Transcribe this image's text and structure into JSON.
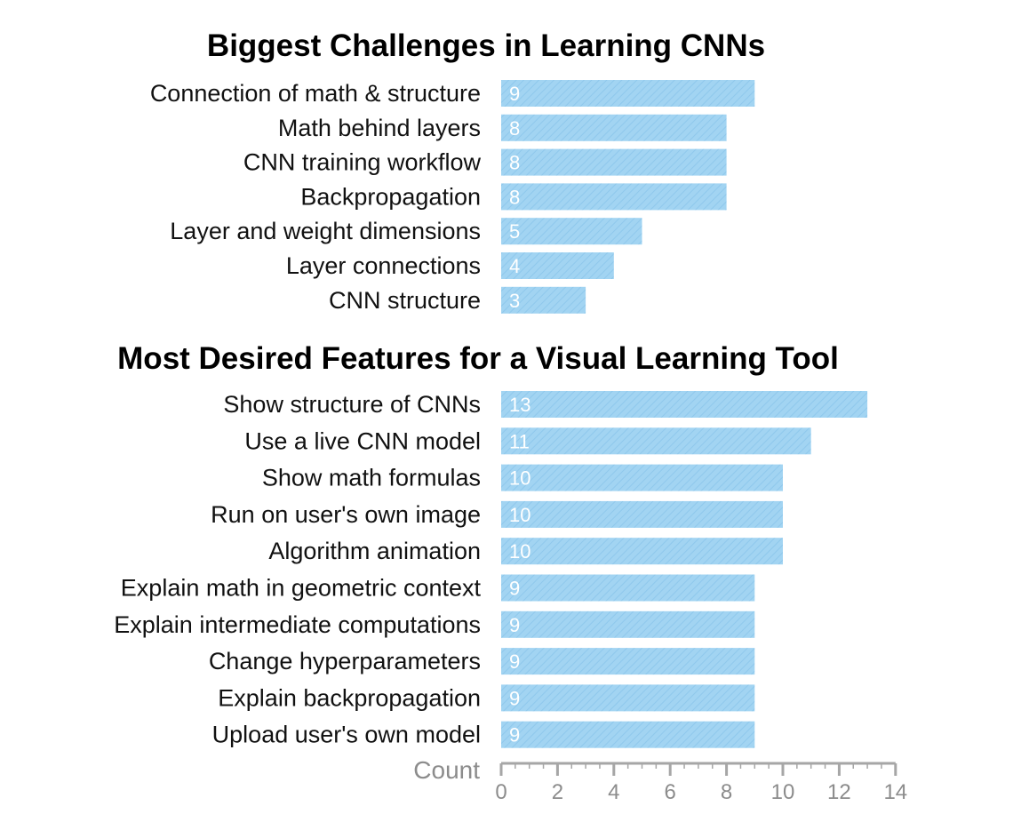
{
  "chart_data": [
    {
      "type": "bar",
      "orientation": "horizontal",
      "title": "Biggest Challenges in Learning CNNs",
      "categories": [
        "Connection of math & structure",
        "Math behind layers",
        "CNN training workflow",
        "Backpropagation",
        "Layer and weight dimensions",
        "Layer connections",
        "CNN structure"
      ],
      "values": [
        9,
        8,
        8,
        8,
        5,
        4,
        3
      ]
    },
    {
      "type": "bar",
      "orientation": "horizontal",
      "title": "Most Desired Features for a Visual Learning Tool",
      "categories": [
        "Show structure of CNNs",
        "Use a live CNN model",
        "Show math formulas",
        "Run on user's own image",
        "Algorithm animation",
        "Explain math in geometric context",
        "Explain intermediate computations",
        "Change hyperparameters",
        "Explain backpropagation",
        "Upload user's own model"
      ],
      "values": [
        13,
        11,
        10,
        10,
        10,
        9,
        9,
        9,
        9,
        9
      ]
    }
  ],
  "axis": {
    "label": "Count",
    "range": [
      0,
      14
    ],
    "ticks": [
      "0",
      "2",
      "4",
      "6",
      "8",
      "10",
      "12",
      "14"
    ],
    "minor_ticks": true
  },
  "colors": {
    "bar": "#a2d4f2",
    "bar_hatch": "#8fc8ec",
    "bar_label": "#ffffff",
    "axis": "#a6a6a6",
    "axis_text": "#8c8c8c",
    "title": "#000000",
    "category_text": "#111111"
  },
  "bars_show_value_labels": true
}
